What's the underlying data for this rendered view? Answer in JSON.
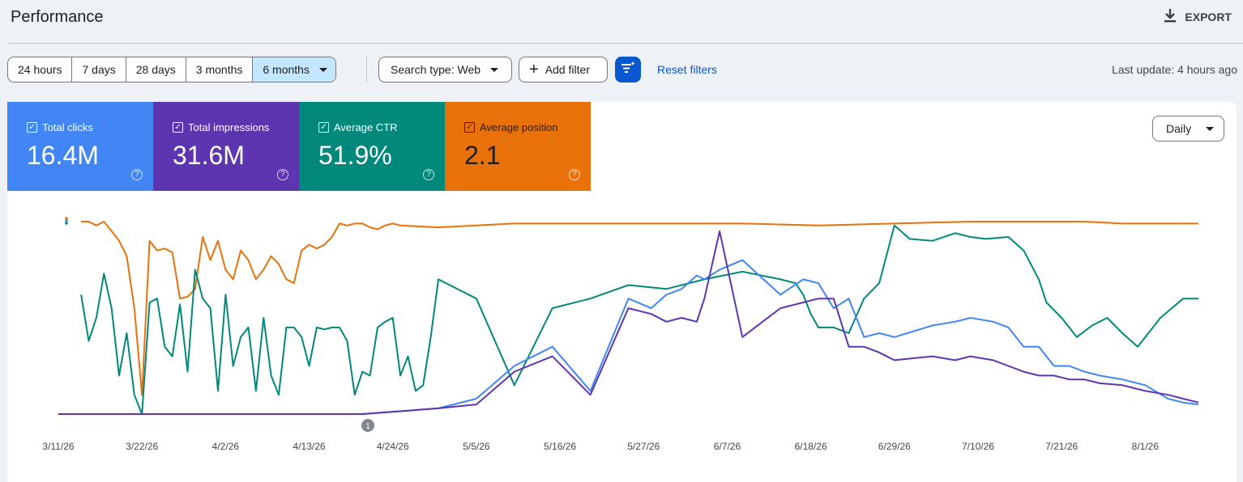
{
  "header": {
    "title": "Performance",
    "export_label": "EXPORT"
  },
  "toolbar": {
    "ranges": [
      "24 hours",
      "7 days",
      "28 days",
      "3 months",
      "6 months"
    ],
    "active_range": "6 months",
    "search_type": "Search type: Web",
    "add_filter": "Add filter",
    "reset_filters": "Reset filters",
    "last_update": "Last update: 4 hours ago"
  },
  "metrics": [
    {
      "label": "Total clicks",
      "value": "16.4M",
      "color": "#4285f4",
      "checked": true
    },
    {
      "label": "Total impressions",
      "value": "31.6M",
      "color": "#5e35b1",
      "checked": true
    },
    {
      "label": "Average CTR",
      "value": "51.9%",
      "color": "#00897b",
      "checked": true
    },
    {
      "label": "Average position",
      "value": "2.1",
      "color": "#e8710a",
      "checked": true
    }
  ],
  "granularity": "Daily",
  "annotation_badge": "1",
  "chart_data": {
    "type": "line",
    "x_ticks": [
      "3/11/26",
      "3/22/26",
      "4/2/26",
      "4/13/26",
      "4/24/26",
      "5/5/26",
      "5/16/26",
      "5/27/26",
      "6/7/26",
      "6/18/26",
      "6/29/26",
      "7/10/26",
      "7/21/26",
      "8/1/26"
    ],
    "x_start": "3/11/26",
    "x_end": "8/8/26",
    "y_range": [
      0,
      100
    ],
    "grid": false,
    "series": [
      {
        "color": "#e8710a",
        "x": [
          3,
          4,
          5,
          6,
          7,
          8,
          9,
          10,
          11,
          12,
          13,
          14,
          15,
          16,
          17,
          18,
          19,
          20,
          21,
          22,
          23,
          24,
          25,
          26,
          27,
          28,
          29,
          30,
          31,
          32,
          33,
          34,
          35,
          36,
          37,
          38,
          39,
          40,
          41,
          42,
          43,
          44,
          45,
          50,
          60,
          70,
          80,
          90,
          100,
          110,
          120,
          125,
          130,
          135,
          140,
          145,
          150
        ],
        "values": [
          100,
          100,
          98,
          100,
          95,
          90,
          82,
          55,
          10,
          90,
          85,
          86,
          84,
          60,
          61,
          65,
          92,
          80,
          90,
          75,
          70,
          85,
          80,
          70,
          75,
          82,
          78,
          70,
          68,
          85,
          88,
          86,
          88,
          92,
          99,
          98,
          99,
          99,
          97,
          96,
          98,
          99,
          98,
          97,
          99,
          99,
          99,
          99,
          98,
          99,
          100,
          100,
          100,
          100,
          99,
          99,
          99
        ]
      },
      {
        "color": "#00897b",
        "x": [
          3,
          4,
          5,
          6,
          7,
          8,
          9,
          10,
          11,
          12,
          13,
          14,
          15,
          16,
          17,
          18,
          19,
          20,
          21,
          22,
          23,
          24,
          25,
          26,
          27,
          28,
          29,
          30,
          31,
          32,
          33,
          34,
          35,
          36,
          37,
          38,
          39,
          40,
          41,
          42,
          43,
          44,
          45,
          46,
          47,
          48,
          49,
          50,
          55,
          60,
          65,
          70,
          75,
          80,
          85,
          90,
          95,
          97,
          98,
          99,
          100,
          102,
          104,
          106,
          108,
          110,
          112,
          115,
          118,
          120,
          122,
          125,
          127,
          129,
          130,
          132,
          134,
          136,
          138,
          140,
          142,
          145,
          148,
          150
        ],
        "values": [
          62,
          38,
          50,
          73,
          55,
          20,
          42,
          10,
          0,
          58,
          60,
          35,
          30,
          57,
          22,
          75,
          60,
          55,
          12,
          62,
          25,
          40,
          45,
          12,
          50,
          20,
          10,
          45,
          45,
          40,
          25,
          45,
          44,
          45,
          45,
          38,
          10,
          22,
          20,
          45,
          48,
          50,
          20,
          30,
          12,
          15,
          40,
          70,
          60,
          15,
          55,
          60,
          67,
          65,
          70,
          74,
          70,
          68,
          62,
          52,
          45,
          45,
          42,
          60,
          68,
          98,
          91,
          90,
          94,
          92,
          91,
          92,
          85,
          70,
          58,
          50,
          40,
          46,
          50,
          42,
          35,
          50,
          60,
          60
        ]
      },
      {
        "color": "#4285f4",
        "x": [
          0,
          40,
          50,
          55,
          60,
          65,
          70,
          75,
          78,
          80,
          82,
          84,
          85,
          87,
          90,
          95,
          98,
          100,
          102,
          104,
          106,
          108,
          110,
          115,
          118,
          120,
          123,
          125,
          127,
          129,
          131,
          133,
          135,
          137,
          140,
          143,
          146,
          148,
          150
        ],
        "values": [
          0,
          0,
          3,
          8,
          25,
          35,
          12,
          60,
          55,
          62,
          65,
          72,
          70,
          75,
          80,
          62,
          70,
          68,
          55,
          60,
          40,
          42,
          40,
          46,
          48,
          50,
          48,
          45,
          35,
          35,
          25,
          25,
          22,
          20,
          18,
          15,
          8,
          6,
          5
        ]
      },
      {
        "color": "#5e35b1",
        "x": [
          0,
          40,
          50,
          55,
          60,
          65,
          70,
          75,
          78,
          80,
          82,
          84,
          85,
          87,
          90,
          95,
          98,
          100,
          102,
          104,
          106,
          108,
          110,
          115,
          118,
          120,
          123,
          125,
          127,
          129,
          131,
          133,
          135,
          137,
          140,
          143,
          146,
          148,
          150
        ],
        "values": [
          0,
          0,
          3,
          5,
          22,
          30,
          10,
          55,
          52,
          48,
          50,
          48,
          60,
          95,
          40,
          55,
          58,
          60,
          60,
          35,
          35,
          32,
          28,
          30,
          28,
          30,
          28,
          25,
          22,
          20,
          20,
          18,
          18,
          16,
          15,
          12,
          10,
          8,
          6
        ]
      }
    ]
  }
}
